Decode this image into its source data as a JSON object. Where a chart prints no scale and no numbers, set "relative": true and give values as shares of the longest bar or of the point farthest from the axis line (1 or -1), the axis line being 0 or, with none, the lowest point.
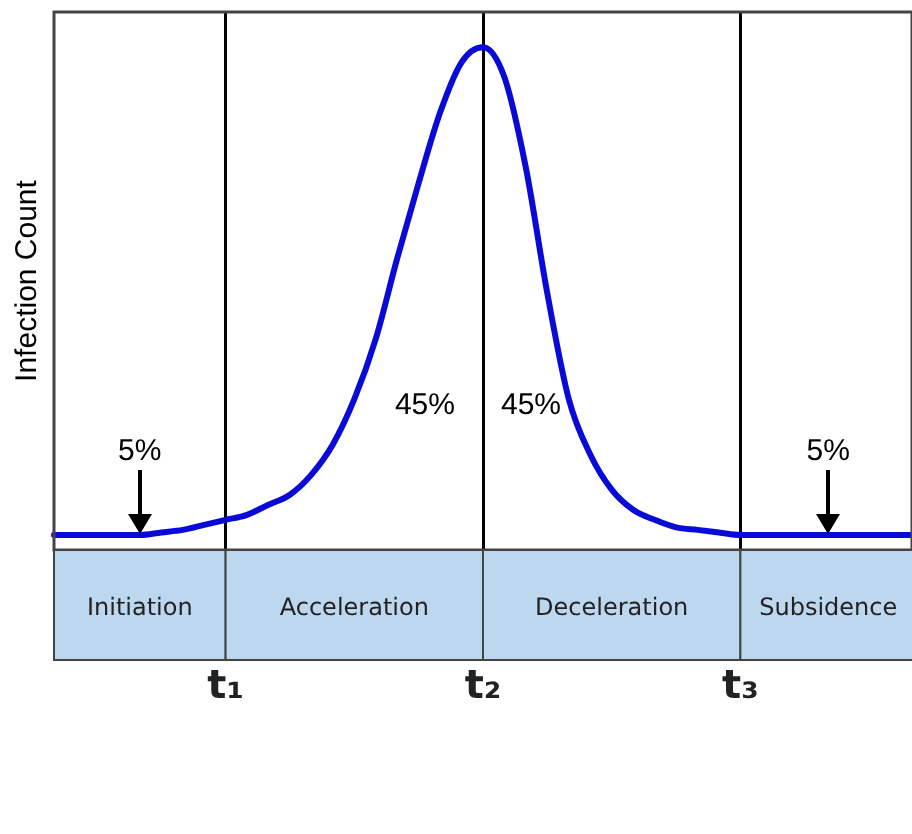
{
  "chart_data": {
    "type": "line",
    "relative": true,
    "ylabel": "Infection Count",
    "categories": [
      null,
      null,
      null,
      null,
      null,
      null,
      null,
      null,
      "t₁",
      null,
      null,
      null,
      null,
      null,
      null,
      null,
      null,
      null,
      null,
      null,
      "t₂",
      null,
      null,
      null,
      null,
      null,
      null,
      null,
      null,
      null,
      null,
      null,
      "t₃",
      null,
      null,
      null,
      null,
      null,
      null,
      null,
      null
    ],
    "series": [
      {
        "color": "#0a0ad8",
        "values": [
          0.03,
          0.03,
          0.03,
          0.03,
          0.03,
          0.035,
          0.04,
          0.05,
          0.06,
          0.07,
          0.09,
          0.11,
          0.15,
          0.21,
          0.3,
          0.42,
          0.58,
          0.73,
          0.87,
          0.97,
          1,
          0.94,
          0.76,
          0.51,
          0.3,
          0.19,
          0.12,
          0.08,
          0.06,
          0.045,
          0.04,
          0.035,
          0.03,
          0.03,
          0.03,
          0.03,
          0.03,
          0.03,
          0.03,
          0.03,
          0.03
        ]
      }
    ],
    "grid": "x",
    "legend": false,
    "marker": "none",
    "line_style": "solid",
    "annotations": [
      "5%",
      "45%",
      "45%",
      "5%",
      "Initiation",
      "Acceleration",
      "Deceleration",
      "Subsidence"
    ]
  }
}
